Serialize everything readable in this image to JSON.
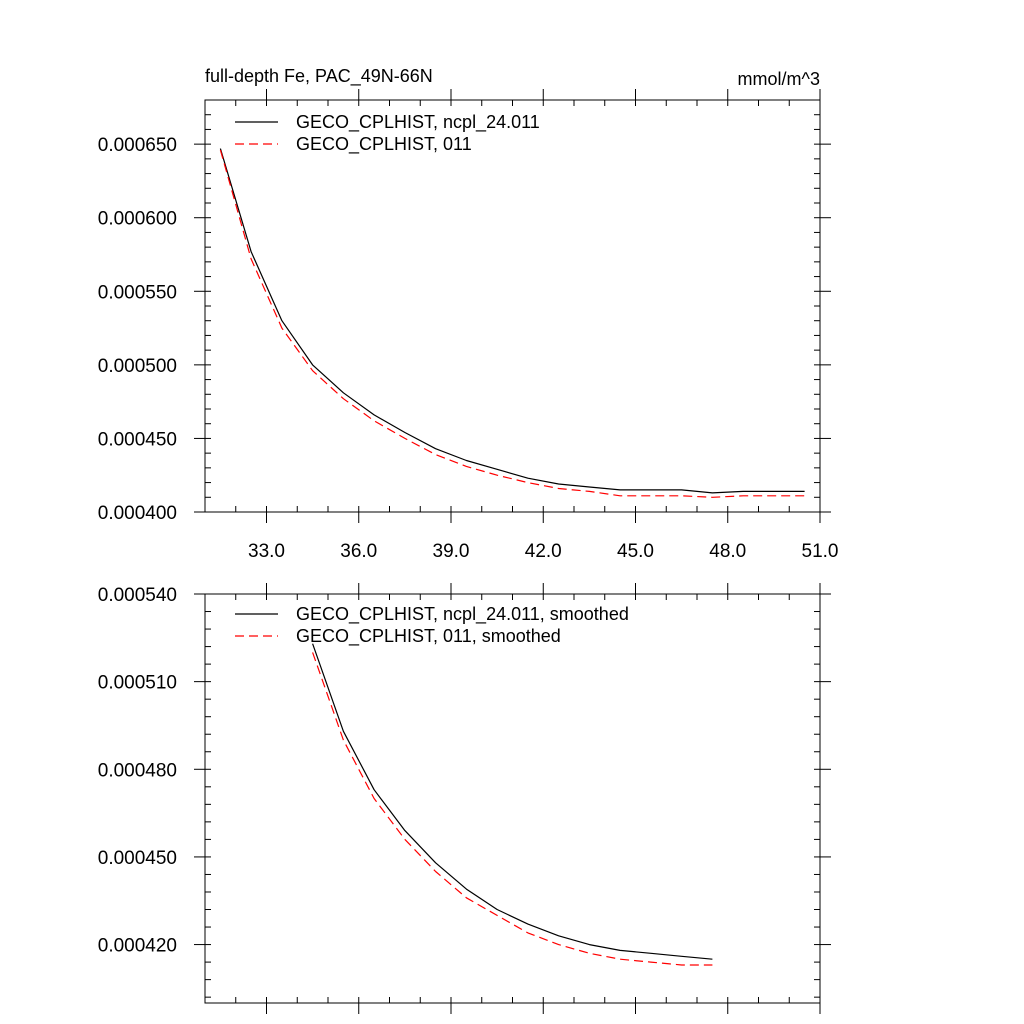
{
  "chart_data": [
    {
      "type": "line",
      "title": "full-depth Fe, PAC_49N-66N",
      "units": "mmol/m^3",
      "xlim": [
        31.0,
        51.0
      ],
      "ylim": [
        0.0004,
        0.00068
      ],
      "xticks": [
        33.0,
        36.0,
        39.0,
        42.0,
        45.0,
        48.0,
        51.0
      ],
      "xtick_labels": [
        "33.0",
        "36.0",
        "39.0",
        "42.0",
        "45.0",
        "48.0",
        "51.0"
      ],
      "yticks": [
        0.0004,
        0.00045,
        0.0005,
        0.00055,
        0.0006,
        0.00065
      ],
      "ytick_labels": [
        "0.000400",
        "0.000450",
        "0.000500",
        "0.000550",
        "0.000600",
        "0.000650"
      ],
      "grid": false,
      "legend_position": "top-left",
      "x": [
        31.5,
        32.5,
        33.5,
        34.5,
        35.5,
        36.5,
        37.5,
        38.5,
        39.5,
        40.5,
        41.5,
        42.5,
        43.5,
        44.5,
        45.5,
        46.5,
        47.5,
        48.5,
        49.5,
        50.5
      ],
      "series": [
        {
          "name": "GECO_CPLHIST, ncpl_24.011",
          "color": "#000000",
          "style": "solid",
          "values": [
            0.000647,
            0.000577,
            0.00053,
            0.0005,
            0.000481,
            0.000466,
            0.000454,
            0.000443,
            0.000435,
            0.000429,
            0.000423,
            0.000419,
            0.000417,
            0.000415,
            0.000415,
            0.000415,
            0.000413,
            0.000414,
            0.000414,
            0.000414
          ]
        },
        {
          "name": "GECO_CPLHIST, 011",
          "color": "#ff0000",
          "style": "dashed",
          "values": [
            0.000646,
            0.000572,
            0.000525,
            0.000496,
            0.000477,
            0.000462,
            0.00045,
            0.000439,
            0.000431,
            0.000425,
            0.00042,
            0.000416,
            0.000414,
            0.000411,
            0.000411,
            0.000411,
            0.00041,
            0.000411,
            0.000411,
            0.000411
          ]
        }
      ]
    },
    {
      "type": "line",
      "xlim": [
        31.0,
        51.0
      ],
      "ylim": [
        0.0004,
        0.00054
      ],
      "xticks": [
        33.0,
        36.0,
        39.0,
        42.0,
        45.0,
        48.0,
        51.0
      ],
      "yticks": [
        0.00042,
        0.00045,
        0.00048,
        0.00051,
        0.00054
      ],
      "ytick_labels": [
        "0.000420",
        "0.000450",
        "0.000480",
        "0.000510",
        "0.000540"
      ],
      "grid": false,
      "legend_position": "top-left",
      "x": [
        34.5,
        35.5,
        36.5,
        37.5,
        38.5,
        39.5,
        40.5,
        41.5,
        42.5,
        43.5,
        44.5,
        45.5,
        46.5,
        47.5
      ],
      "series": [
        {
          "name": "GECO_CPLHIST, ncpl_24.011, smoothed",
          "color": "#000000",
          "style": "solid",
          "values": [
            0.000523,
            0.000493,
            0.000473,
            0.000459,
            0.000448,
            0.000439,
            0.000432,
            0.000427,
            0.000423,
            0.00042,
            0.000418,
            0.000417,
            0.000416,
            0.000415
          ]
        },
        {
          "name": "GECO_CPLHIST, 011, smoothed",
          "color": "#ff0000",
          "style": "dashed",
          "values": [
            0.00052,
            0.00049,
            0.00047,
            0.000456,
            0.000445,
            0.000436,
            0.00043,
            0.000424,
            0.00042,
            0.000417,
            0.000415,
            0.000414,
            0.000413,
            0.000413
          ]
        }
      ]
    }
  ]
}
